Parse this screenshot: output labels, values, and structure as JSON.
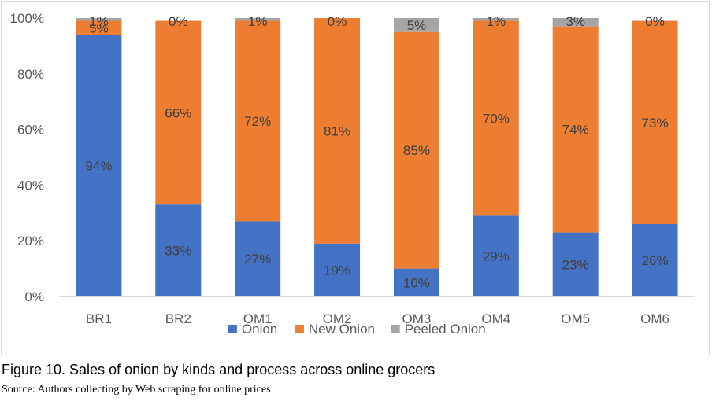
{
  "chart_data": {
    "type": "bar",
    "stacked": true,
    "categories": [
      "BR1",
      "BR2",
      "OM1",
      "OM2",
      "OM3",
      "OM4",
      "OM5",
      "OM6"
    ],
    "series": [
      {
        "name": "Onion",
        "values": [
          94,
          33,
          27,
          19,
          10,
          29,
          23,
          26
        ],
        "color": "#4472c4"
      },
      {
        "name": "New Onion",
        "values": [
          5,
          66,
          72,
          81,
          85,
          70,
          74,
          73
        ],
        "color": "#ed7d31"
      },
      {
        "name": "Peeled Onion",
        "values": [
          1,
          0,
          1,
          0,
          5,
          1,
          3,
          0
        ],
        "color": "#a5a5a5"
      }
    ],
    "yticks": [
      "0%",
      "20%",
      "40%",
      "60%",
      "80%",
      "100%"
    ],
    "ylim": [
      0,
      100
    ],
    "grid": false,
    "legend_position": "bottom"
  },
  "caption": "Figure 10. Sales of onion by kinds and process across online grocers",
  "source": "Source: Authors collecting by Web scraping for online prices"
}
